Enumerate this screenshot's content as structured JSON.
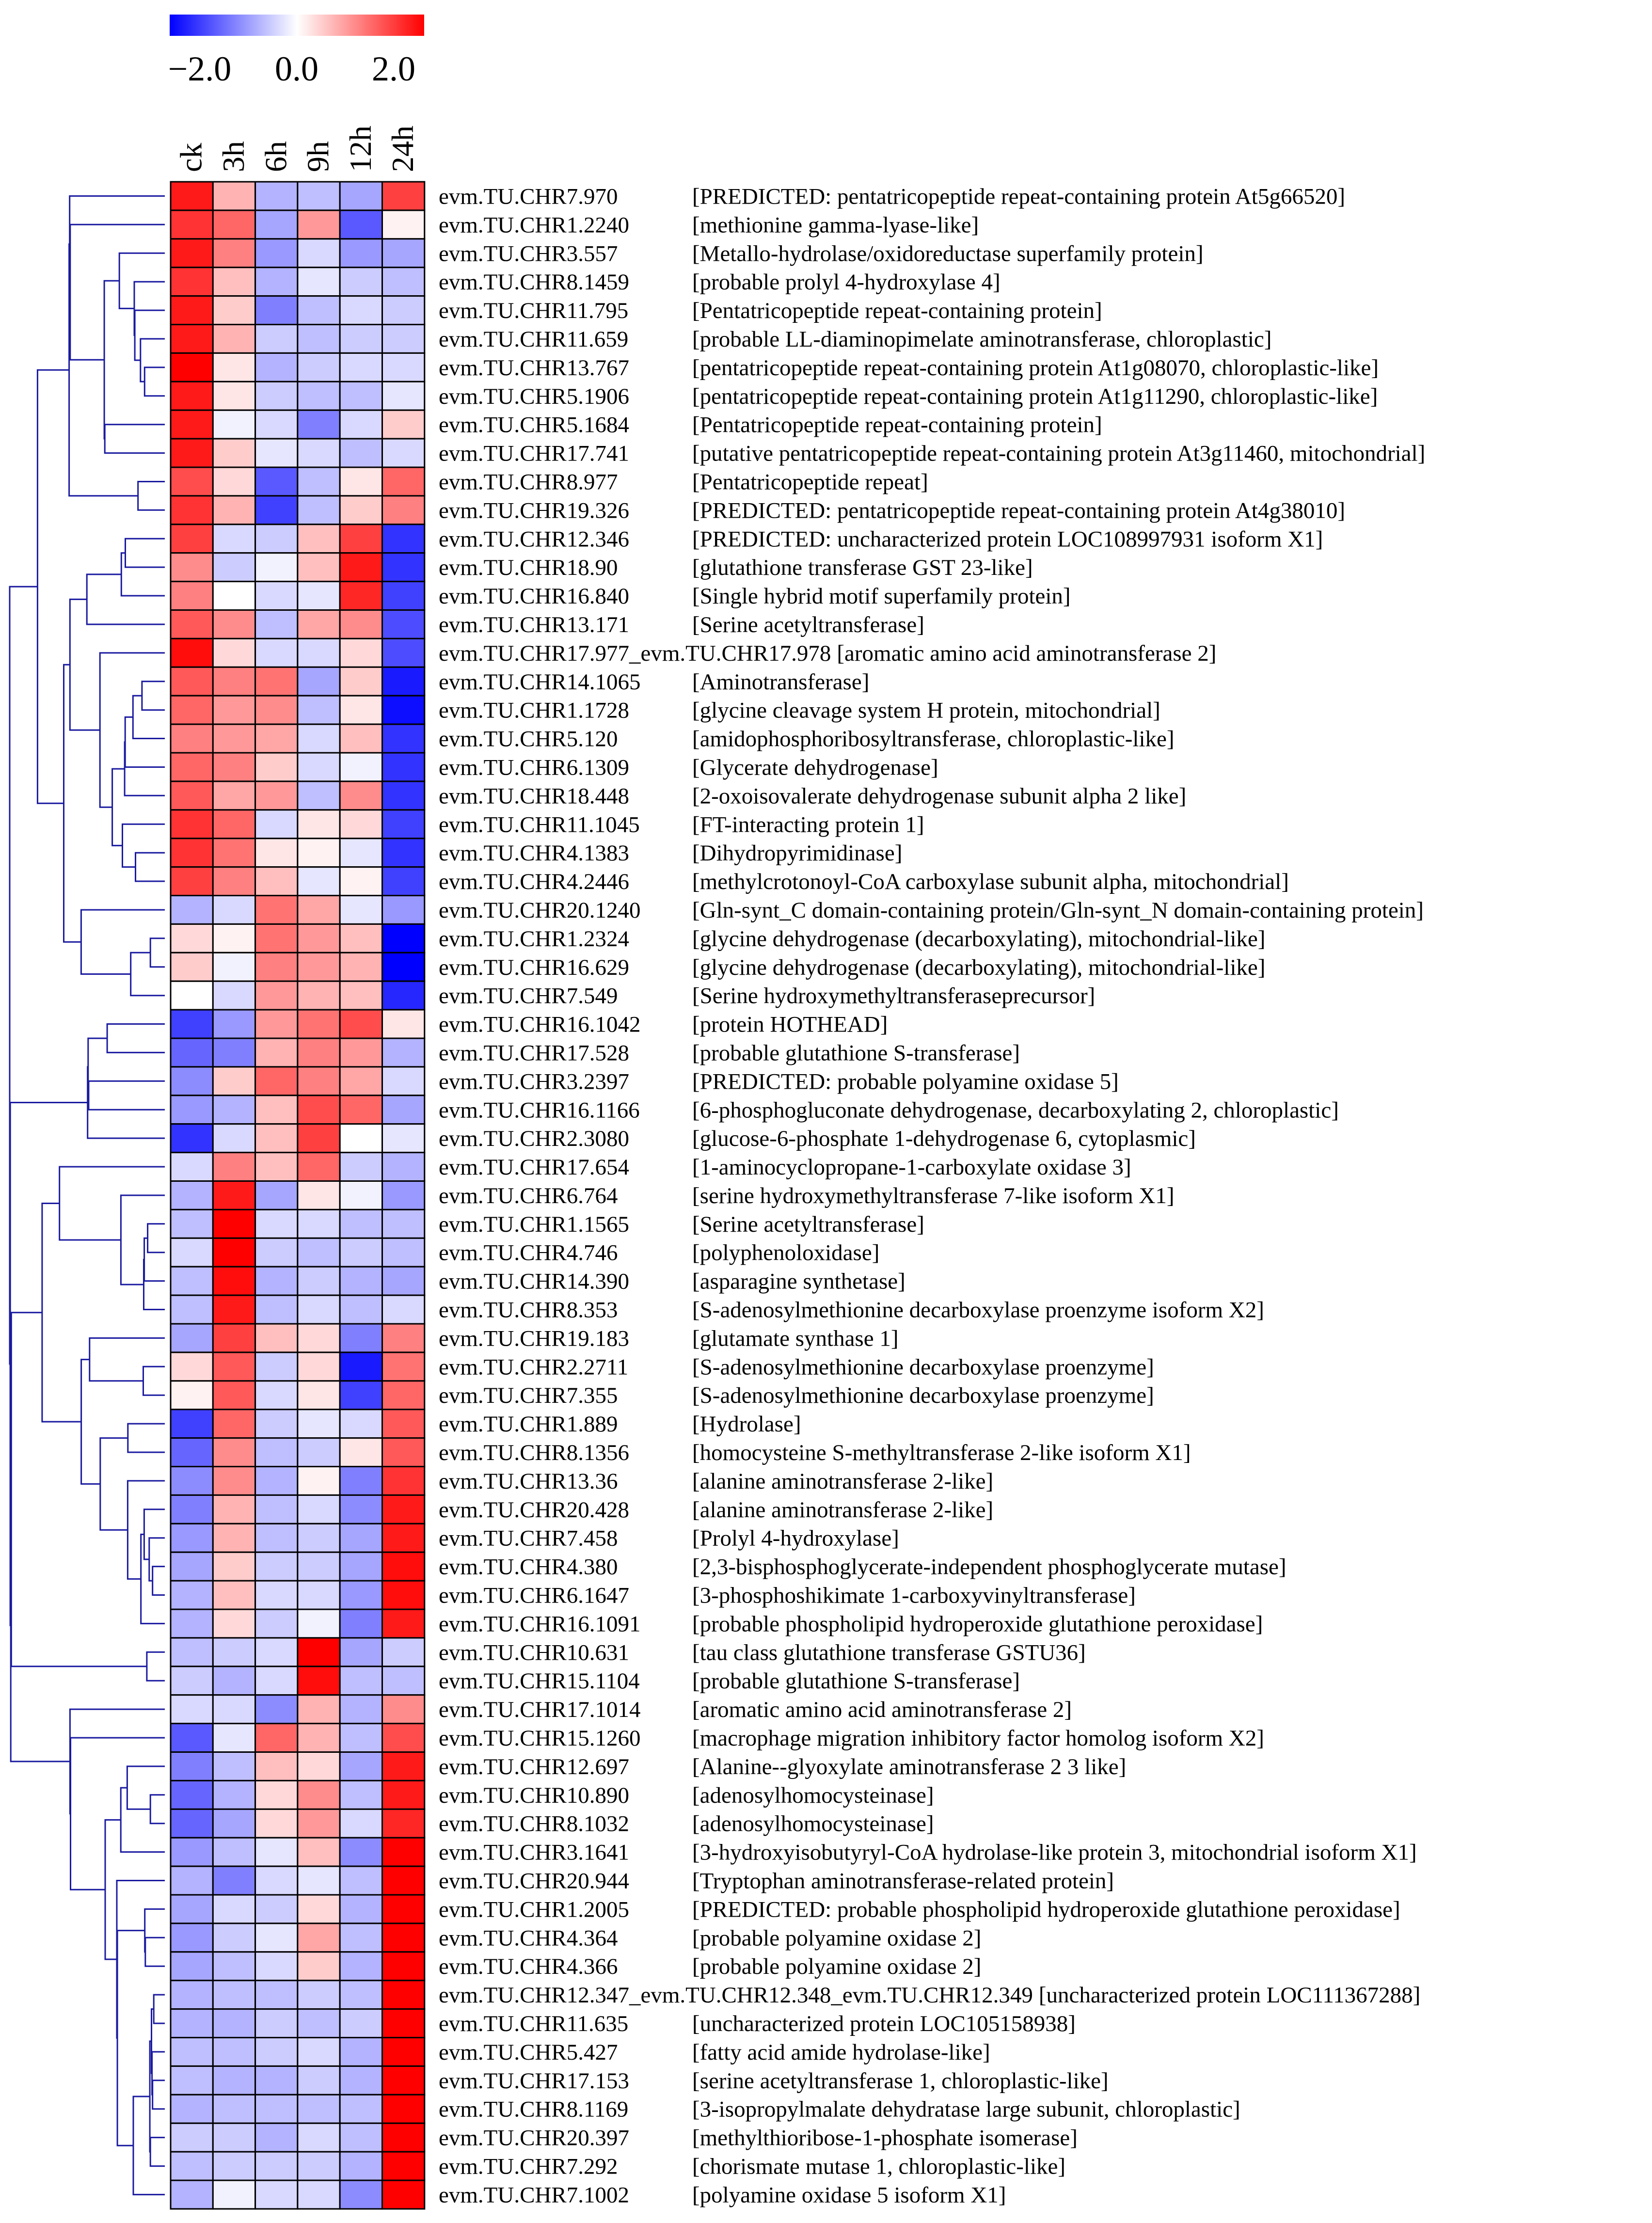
{
  "chart_data": {
    "type": "heatmap",
    "title": "",
    "colorbar": {
      "min": -2.0,
      "mid": 0.0,
      "max": 2.0,
      "tick_labels": [
        "−2.0",
        "0.0",
        "2.0"
      ],
      "colors": {
        "low": "#0000ff",
        "mid": "#ffffff",
        "high": "#ff0000"
      }
    },
    "columns": [
      "ck",
      "3h",
      "6h",
      "9h",
      "12h",
      "24h"
    ],
    "rows": [
      {
        "id": "evm.TU.CHR7.970",
        "desc": "[PREDICTED: pentatricopeptide repeat-containing protein At5g66520]"
      },
      {
        "id": "evm.TU.CHR1.2240",
        "desc": "[methionine gamma-lyase-like]"
      },
      {
        "id": "evm.TU.CHR3.557",
        "desc": "[Metallo-hydrolase/oxidoreductase superfamily protein]"
      },
      {
        "id": "evm.TU.CHR8.1459",
        "desc": "[probable prolyl 4-hydroxylase 4]"
      },
      {
        "id": "evm.TU.CHR11.795",
        "desc": "[Pentatricopeptide repeat-containing protein]"
      },
      {
        "id": "evm.TU.CHR11.659",
        "desc": "[probable LL-diaminopimelate aminotransferase, chloroplastic]"
      },
      {
        "id": "evm.TU.CHR13.767",
        "desc": "[pentatricopeptide repeat-containing protein At1g08070, chloroplastic-like]"
      },
      {
        "id": "evm.TU.CHR5.1906",
        "desc": "[pentatricopeptide repeat-containing protein At1g11290, chloroplastic-like]"
      },
      {
        "id": "evm.TU.CHR5.1684",
        "desc": "[Pentatricopeptide repeat-containing protein]"
      },
      {
        "id": "evm.TU.CHR17.741",
        "desc": "[putative pentatricopeptide repeat-containing protein At3g11460, mitochondrial]"
      },
      {
        "id": "evm.TU.CHR8.977",
        "desc": "[Pentatricopeptide repeat]"
      },
      {
        "id": "evm.TU.CHR19.326",
        "desc": "[PREDICTED: pentatricopeptide repeat-containing protein At4g38010]"
      },
      {
        "id": "evm.TU.CHR12.346",
        "desc": "[PREDICTED: uncharacterized protein LOC108997931 isoform X1]"
      },
      {
        "id": "evm.TU.CHR18.90",
        "desc": "[glutathione transferase GST 23-like]"
      },
      {
        "id": "evm.TU.CHR16.840",
        "desc": "[Single hybrid motif superfamily protein]"
      },
      {
        "id": "evm.TU.CHR13.171",
        "desc": "[Serine acetyltransferase]"
      },
      {
        "id": "evm.TU.CHR17.977_evm.TU.CHR17.978",
        "desc": "[aromatic amino acid aminotransferase 2]"
      },
      {
        "id": "evm.TU.CHR14.1065",
        "desc": "[Aminotransferase]"
      },
      {
        "id": "evm.TU.CHR1.1728",
        "desc": "[glycine cleavage system H protein, mitochondrial]"
      },
      {
        "id": "evm.TU.CHR5.120",
        "desc": "[amidophosphoribosyltransferase, chloroplastic-like]"
      },
      {
        "id": "evm.TU.CHR6.1309",
        "desc": "[Glycerate dehydrogenase]"
      },
      {
        "id": "evm.TU.CHR18.448",
        "desc": "[2-oxoisovalerate dehydrogenase subunit alpha 2 like]"
      },
      {
        "id": "evm.TU.CHR11.1045",
        "desc": "[FT-interacting protein 1]"
      },
      {
        "id": "evm.TU.CHR4.1383",
        "desc": "[Dihydropyrimidinase]"
      },
      {
        "id": "evm.TU.CHR4.2446",
        "desc": "[methylcrotonoyl-CoA carboxylase subunit alpha, mitochondrial]"
      },
      {
        "id": "evm.TU.CHR20.1240",
        "desc": "[Gln-synt_C domain-containing protein/Gln-synt_N domain-containing protein]"
      },
      {
        "id": "evm.TU.CHR1.2324",
        "desc": "[glycine dehydrogenase (decarboxylating), mitochondrial-like]"
      },
      {
        "id": "evm.TU.CHR16.629",
        "desc": "[glycine dehydrogenase (decarboxylating), mitochondrial-like]"
      },
      {
        "id": "evm.TU.CHR7.549",
        "desc": "[Serine hydroxymethyltransferaseprecursor]"
      },
      {
        "id": "evm.TU.CHR16.1042",
        "desc": "[protein HOTHEAD]"
      },
      {
        "id": "evm.TU.CHR17.528",
        "desc": "[probable glutathione S-transferase]"
      },
      {
        "id": "evm.TU.CHR3.2397",
        "desc": "[PREDICTED: probable polyamine oxidase 5]"
      },
      {
        "id": "evm.TU.CHR16.1166",
        "desc": "[6-phosphogluconate dehydrogenase, decarboxylating 2, chloroplastic]"
      },
      {
        "id": "evm.TU.CHR2.3080",
        "desc": "[glucose-6-phosphate 1-dehydrogenase 6, cytoplasmic]"
      },
      {
        "id": "evm.TU.CHR17.654",
        "desc": "[1-aminocyclopropane-1-carboxylate oxidase 3]"
      },
      {
        "id": "evm.TU.CHR6.764",
        "desc": "[serine hydroxymethyltransferase 7-like isoform X1]"
      },
      {
        "id": "evm.TU.CHR1.1565",
        "desc": "[Serine acetyltransferase]"
      },
      {
        "id": "evm.TU.CHR4.746",
        "desc": "[polyphenoloxidase]"
      },
      {
        "id": "evm.TU.CHR14.390",
        "desc": "[asparagine synthetase]"
      },
      {
        "id": "evm.TU.CHR8.353",
        "desc": "[S-adenosylmethionine decarboxylase proenzyme isoform X2]"
      },
      {
        "id": "evm.TU.CHR19.183",
        "desc": "[glutamate synthase 1]"
      },
      {
        "id": "evm.TU.CHR2.2711",
        "desc": "[S-adenosylmethionine decarboxylase proenzyme]"
      },
      {
        "id": "evm.TU.CHR7.355",
        "desc": "[S-adenosylmethionine decarboxylase proenzyme]"
      },
      {
        "id": "evm.TU.CHR1.889",
        "desc": "[Hydrolase]"
      },
      {
        "id": "evm.TU.CHR8.1356",
        "desc": "[homocysteine S-methyltransferase 2-like isoform X1]"
      },
      {
        "id": "evm.TU.CHR13.36",
        "desc": "[alanine aminotransferase 2-like]"
      },
      {
        "id": "evm.TU.CHR20.428",
        "desc": "[alanine aminotransferase 2-like]"
      },
      {
        "id": "evm.TU.CHR7.458",
        "desc": "[Prolyl 4-hydroxylase]"
      },
      {
        "id": "evm.TU.CHR4.380",
        "desc": "[2,3-bisphosphoglycerate-independent phosphoglycerate mutase]"
      },
      {
        "id": "evm.TU.CHR6.1647",
        "desc": "[3-phosphoshikimate 1-carboxyvinyltransferase]"
      },
      {
        "id": "evm.TU.CHR16.1091",
        "desc": "[probable phospholipid hydroperoxide glutathione peroxidase]"
      },
      {
        "id": "evm.TU.CHR10.631",
        "desc": "[tau class glutathione transferase GSTU36]"
      },
      {
        "id": "evm.TU.CHR15.1104",
        "desc": "[probable glutathione S-transferase]"
      },
      {
        "id": "evm.TU.CHR17.1014",
        "desc": "[aromatic amino acid aminotransferase 2]"
      },
      {
        "id": "evm.TU.CHR15.1260",
        "desc": "[macrophage migration inhibitory factor homolog isoform X2]"
      },
      {
        "id": "evm.TU.CHR12.697",
        "desc": "[Alanine--glyoxylate aminotransferase 2 3 like]"
      },
      {
        "id": "evm.TU.CHR10.890",
        "desc": "[adenosylhomocysteinase]"
      },
      {
        "id": "evm.TU.CHR8.1032",
        "desc": "[adenosylhomocysteinase]"
      },
      {
        "id": "evm.TU.CHR3.1641",
        "desc": "[3-hydroxyisobutyryl-CoA hydrolase-like protein 3, mitochondrial isoform X1]"
      },
      {
        "id": "evm.TU.CHR20.944",
        "desc": "[Tryptophan aminotransferase-related protein]"
      },
      {
        "id": "evm.TU.CHR1.2005",
        "desc": "[PREDICTED: probable phospholipid hydroperoxide glutathione peroxidase]"
      },
      {
        "id": "evm.TU.CHR4.364",
        "desc": "[probable polyamine oxidase 2]"
      },
      {
        "id": "evm.TU.CHR4.366",
        "desc": "[probable polyamine oxidase 2]"
      },
      {
        "id": "evm.TU.CHR12.347_evm.TU.CHR12.348_evm.TU.CHR12.349",
        "desc": "[uncharacterized protein LOC111367288]"
      },
      {
        "id": "evm.TU.CHR11.635",
        "desc": "[uncharacterized protein LOC105158938]"
      },
      {
        "id": "evm.TU.CHR5.427",
        "desc": "[fatty acid amide hydrolase-like]"
      },
      {
        "id": "evm.TU.CHR17.153",
        "desc": "[serine acetyltransferase 1, chloroplastic-like]"
      },
      {
        "id": "evm.TU.CHR8.1169",
        "desc": "[3-isopropylmalate dehydratase large subunit, chloroplastic]"
      },
      {
        "id": "evm.TU.CHR20.397",
        "desc": "[methylthioribose-1-phosphate isomerase]"
      },
      {
        "id": "evm.TU.CHR7.292",
        "desc": "[chorismate mutase 1, chloroplastic-like]"
      },
      {
        "id": "evm.TU.CHR7.1002",
        "desc": "[polyamine oxidase 5 isoform X1]"
      }
    ],
    "values": [
      [
        1.8,
        0.6,
        -0.6,
        -0.5,
        -0.7,
        1.5
      ],
      [
        1.6,
        1.2,
        -0.7,
        0.8,
        -1.3,
        0.1
      ],
      [
        1.8,
        1.0,
        -0.8,
        -0.3,
        -0.8,
        -0.7
      ],
      [
        1.6,
        0.5,
        -0.6,
        -0.2,
        -0.4,
        -0.5
      ],
      [
        1.8,
        0.4,
        -1.0,
        -0.5,
        -0.3,
        -0.4
      ],
      [
        1.8,
        0.6,
        -0.4,
        -0.5,
        -0.4,
        -0.4
      ],
      [
        2.0,
        0.2,
        -0.6,
        -0.4,
        -0.3,
        -0.3
      ],
      [
        1.8,
        0.2,
        -0.4,
        -0.5,
        -0.5,
        -0.2
      ],
      [
        1.8,
        -0.1,
        -0.3,
        -1.0,
        -0.3,
        0.4
      ],
      [
        1.8,
        0.4,
        -0.2,
        -0.3,
        -0.5,
        -0.3
      ],
      [
        1.4,
        0.3,
        -1.3,
        -0.5,
        0.2,
        1.2
      ],
      [
        1.6,
        0.6,
        -1.5,
        -0.5,
        0.4,
        1.0
      ],
      [
        1.5,
        -0.3,
        -0.4,
        0.5,
        1.5,
        -1.6
      ],
      [
        0.9,
        -0.4,
        -0.1,
        0.5,
        1.8,
        -1.6
      ],
      [
        1.0,
        0.0,
        -0.3,
        -0.2,
        1.7,
        -1.5
      ],
      [
        1.3,
        0.9,
        -0.5,
        0.7,
        0.9,
        -1.4
      ],
      [
        1.9,
        0.3,
        -0.3,
        -0.3,
        0.3,
        -1.4
      ],
      [
        1.3,
        1.0,
        1.1,
        -0.7,
        0.4,
        -1.8
      ],
      [
        1.2,
        0.8,
        0.9,
        -0.5,
        0.2,
        -1.9
      ],
      [
        1.0,
        0.8,
        0.7,
        -0.3,
        0.5,
        -1.6
      ],
      [
        1.2,
        1.0,
        0.4,
        -0.3,
        -0.1,
        -1.6
      ],
      [
        1.3,
        0.7,
        0.8,
        -0.5,
        0.9,
        -1.6
      ],
      [
        1.6,
        1.2,
        -0.3,
        0.2,
        0.3,
        -1.5
      ],
      [
        1.6,
        1.1,
        0.2,
        0.1,
        -0.2,
        -1.6
      ],
      [
        1.5,
        1.0,
        0.5,
        -0.2,
        0.1,
        -1.5
      ],
      [
        -0.6,
        -0.3,
        1.1,
        0.7,
        -0.2,
        -0.8
      ],
      [
        0.3,
        0.1,
        1.1,
        0.8,
        0.5,
        -2.0
      ],
      [
        0.4,
        -0.1,
        1.0,
        0.8,
        0.6,
        -2.0
      ],
      [
        0.0,
        -0.3,
        0.8,
        0.6,
        0.5,
        -1.7
      ],
      [
        -1.5,
        -0.8,
        0.8,
        1.1,
        1.4,
        0.2
      ],
      [
        -1.2,
        -1.0,
        0.6,
        1.0,
        0.8,
        -0.6
      ],
      [
        -0.9,
        0.4,
        1.2,
        1.0,
        0.7,
        -0.3
      ],
      [
        -0.8,
        -0.6,
        0.5,
        1.4,
        1.2,
        -0.7
      ],
      [
        -1.6,
        -0.3,
        0.5,
        1.5,
        0.0,
        -0.2
      ],
      [
        -0.3,
        1.0,
        0.5,
        1.2,
        -0.4,
        -0.6
      ],
      [
        -0.6,
        1.8,
        -0.7,
        0.2,
        -0.1,
        -0.8
      ],
      [
        -0.5,
        2.0,
        -0.3,
        -0.3,
        -0.5,
        -0.5
      ],
      [
        -0.3,
        2.0,
        -0.4,
        -0.5,
        -0.4,
        -0.5
      ],
      [
        -0.5,
        1.9,
        -0.6,
        -0.4,
        -0.6,
        -0.7
      ],
      [
        -0.5,
        1.8,
        -0.5,
        -0.3,
        -0.5,
        -0.3
      ],
      [
        -0.7,
        1.5,
        0.5,
        0.3,
        -1.0,
        1.0
      ],
      [
        0.3,
        1.3,
        -0.4,
        0.3,
        -1.8,
        1.1
      ],
      [
        0.1,
        1.3,
        -0.3,
        0.2,
        -1.5,
        1.2
      ],
      [
        -1.5,
        1.2,
        -0.4,
        -0.2,
        -0.3,
        1.3
      ],
      [
        -1.2,
        0.9,
        -0.5,
        -0.4,
        0.2,
        1.3
      ],
      [
        -0.9,
        0.9,
        -0.6,
        0.1,
        -1.0,
        1.6
      ],
      [
        -1.0,
        0.6,
        -0.5,
        -0.3,
        -0.9,
        1.8
      ],
      [
        -0.8,
        0.6,
        -0.5,
        -0.4,
        -0.7,
        1.8
      ],
      [
        -0.7,
        0.4,
        -0.4,
        -0.4,
        -0.7,
        1.9
      ],
      [
        -0.6,
        0.5,
        -0.3,
        -0.3,
        -0.8,
        1.9
      ],
      [
        -0.6,
        0.3,
        -0.4,
        -0.1,
        -1.0,
        1.8
      ],
      [
        -0.5,
        -0.4,
        -0.3,
        2.0,
        -0.7,
        -0.4
      ],
      [
        -0.4,
        -0.6,
        -0.3,
        1.9,
        -0.5,
        -0.5
      ],
      [
        -0.3,
        -0.3,
        -0.9,
        0.6,
        -0.6,
        0.9
      ],
      [
        -1.3,
        -0.2,
        1.2,
        0.6,
        -0.5,
        1.4
      ],
      [
        -1.0,
        -0.5,
        0.5,
        0.3,
        -0.7,
        1.8
      ],
      [
        -1.2,
        -0.6,
        0.3,
        0.9,
        -0.5,
        1.8
      ],
      [
        -1.2,
        -0.7,
        0.3,
        0.8,
        -0.3,
        1.7
      ],
      [
        -0.8,
        -0.5,
        -0.2,
        0.5,
        -0.9,
        2.0
      ],
      [
        -0.6,
        -1.0,
        -0.3,
        -0.2,
        -0.5,
        2.0
      ],
      [
        -0.7,
        -0.3,
        -0.4,
        0.3,
        -0.6,
        2.0
      ],
      [
        -0.8,
        -0.4,
        -0.2,
        0.7,
        -0.5,
        2.0
      ],
      [
        -0.7,
        -0.5,
        -0.3,
        0.4,
        -0.6,
        2.0
      ],
      [
        -0.6,
        -0.5,
        -0.5,
        -0.4,
        -0.5,
        2.0
      ],
      [
        -0.6,
        -0.6,
        -0.4,
        -0.5,
        -0.4,
        2.0
      ],
      [
        -0.5,
        -0.5,
        -0.4,
        -0.3,
        -0.6,
        2.0
      ],
      [
        -0.5,
        -0.6,
        -0.6,
        -0.4,
        -0.6,
        2.0
      ],
      [
        -0.6,
        -0.5,
        -0.5,
        -0.5,
        -0.5,
        2.0
      ],
      [
        -0.4,
        -0.4,
        -0.6,
        -0.3,
        -0.5,
        2.0
      ],
      [
        -0.5,
        -0.4,
        -0.4,
        -0.4,
        -0.6,
        2.0
      ],
      [
        -0.6,
        -0.1,
        -0.3,
        -0.3,
        -0.9,
        2.0
      ]
    ]
  }
}
